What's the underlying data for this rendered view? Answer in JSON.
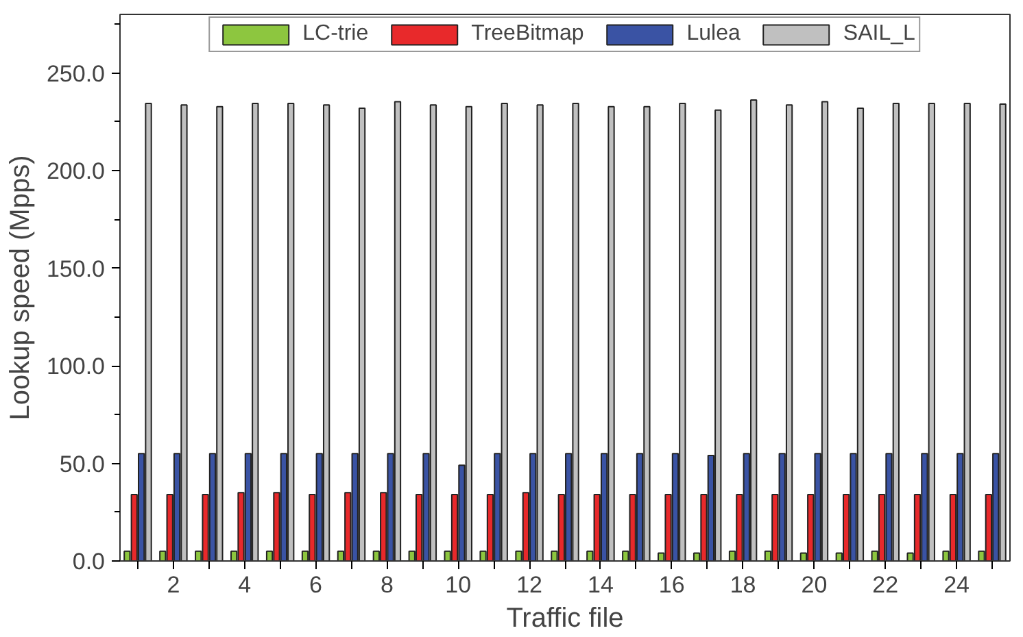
{
  "chart_data": {
    "type": "bar",
    "xlabel": "Traffic file",
    "ylabel": "Lookup speed (Mpps)",
    "x": [
      1,
      2,
      3,
      4,
      5,
      6,
      7,
      8,
      9,
      10,
      11,
      12,
      13,
      14,
      15,
      16,
      17,
      18,
      19,
      20,
      21,
      22,
      23,
      24,
      25
    ],
    "xlim": [
      0.5,
      25.5
    ],
    "xticks": [
      2,
      4,
      6,
      8,
      10,
      12,
      14,
      16,
      18,
      20,
      22,
      24
    ],
    "series": [
      {
        "name": "LC-trie",
        "color": "#8dc63f",
        "values": [
          5,
          5,
          5,
          5,
          5,
          5,
          5,
          5,
          5,
          5,
          5,
          5,
          5,
          5,
          5,
          4,
          4,
          5,
          5,
          4,
          4,
          5,
          4,
          5,
          5
        ]
      },
      {
        "name": "TreeBitmap",
        "color": "#e8292b",
        "values": [
          34,
          34,
          34,
          35,
          35,
          34,
          35,
          35,
          34,
          34,
          34,
          35,
          34,
          34,
          34,
          34,
          34,
          34,
          34,
          34,
          34,
          34,
          34,
          34,
          34
        ]
      },
      {
        "name": "Lulea",
        "color": "#3a53a4",
        "values": [
          55,
          55,
          55,
          55,
          55,
          55,
          55,
          55,
          55,
          49,
          55,
          55,
          55,
          55,
          55,
          55,
          54,
          55,
          55,
          55,
          55,
          55,
          55,
          55,
          55
        ]
      },
      {
        "name": "SAIL_L",
        "color": "#c0c0c0",
        "values": [
          234.4,
          233.6,
          232.7,
          234.4,
          234.4,
          233.6,
          231.9,
          235.3,
          233.6,
          232.7,
          234.4,
          233.6,
          234.4,
          232.7,
          232.7,
          234.4,
          231,
          236.1,
          233.6,
          235.3,
          231.9,
          234.4,
          234.4,
          234.4,
          234
        ]
      }
    ],
    "ylim": [
      0,
      280
    ],
    "yticks": [
      {
        "value": 0,
        "label": "0.0"
      },
      {
        "value": 50,
        "label": "50.0"
      },
      {
        "value": 100,
        "label": "100.0"
      },
      {
        "value": 150,
        "label": "150.0"
      },
      {
        "value": 200,
        "label": "200.0"
      },
      {
        "value": 250,
        "label": "250.0"
      }
    ],
    "grid": false,
    "legend": "top"
  }
}
